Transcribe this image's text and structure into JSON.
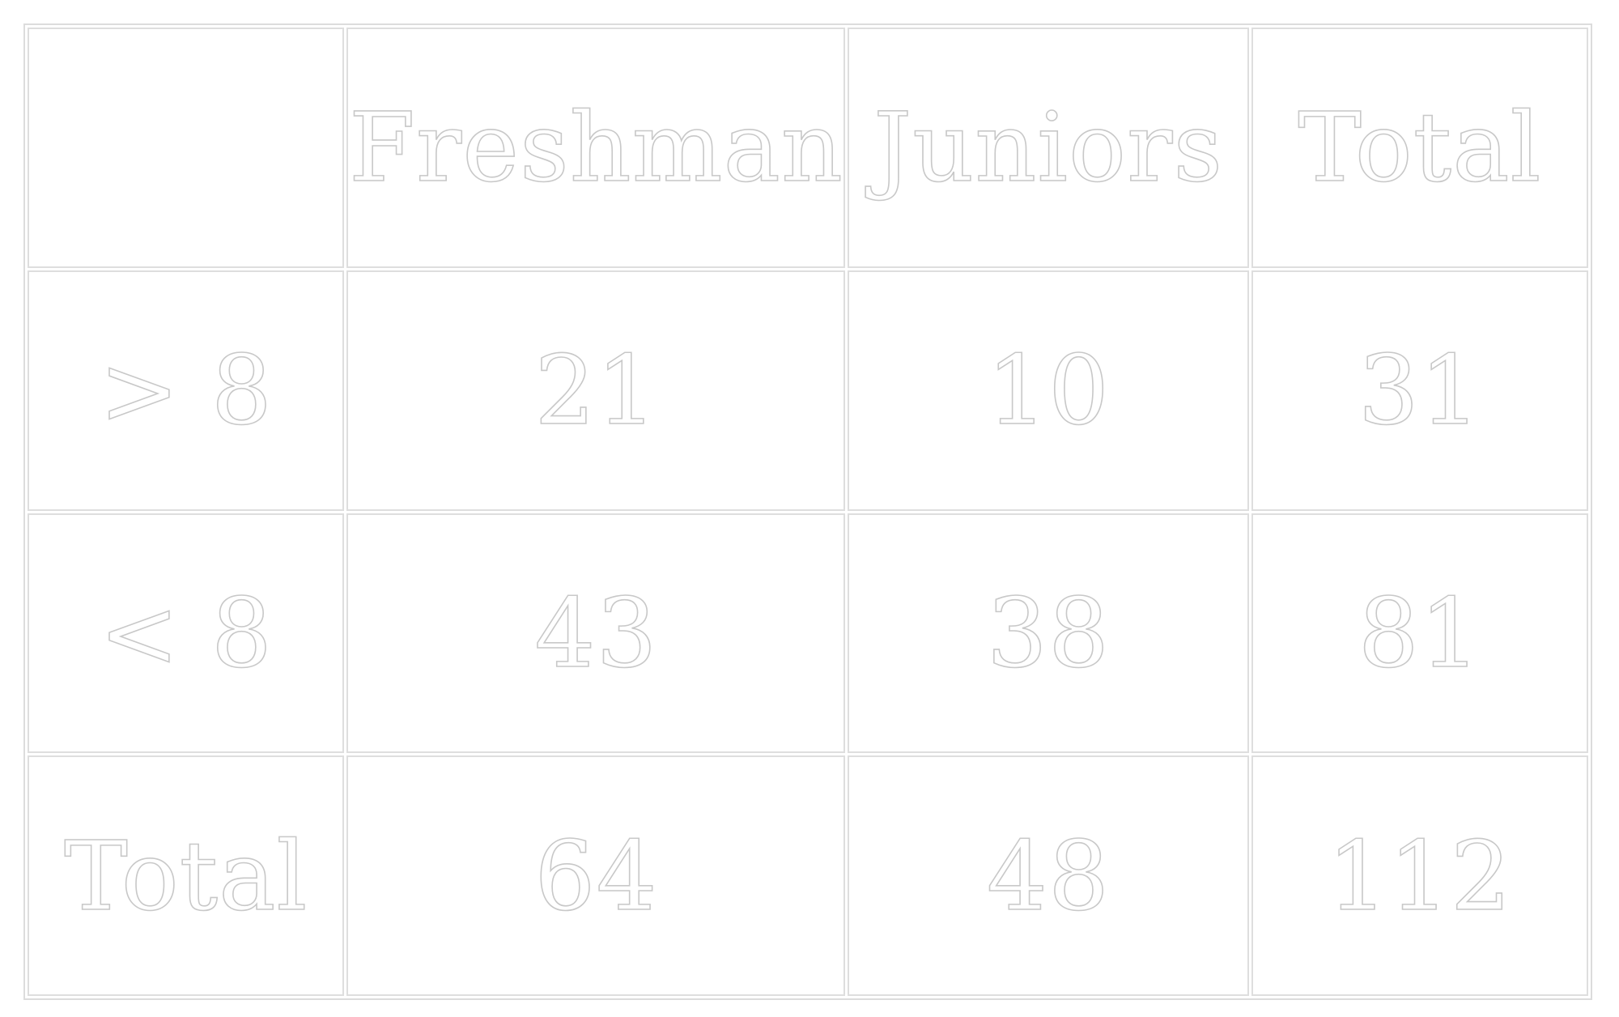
{
  "table": {
    "header": [
      "",
      "Freshman",
      "Juniors",
      "Total"
    ],
    "rows": [
      [
        ">  8",
        "21",
        "10",
        "31"
      ],
      [
        "< 8",
        "43",
        "38",
        "81"
      ],
      [
        "Total",
        "64",
        "48",
        "112"
      ]
    ]
  },
  "colors": {
    "text_outline": "#c8c8c8",
    "grid_line": "#dedede",
    "background": "#ffffff"
  }
}
